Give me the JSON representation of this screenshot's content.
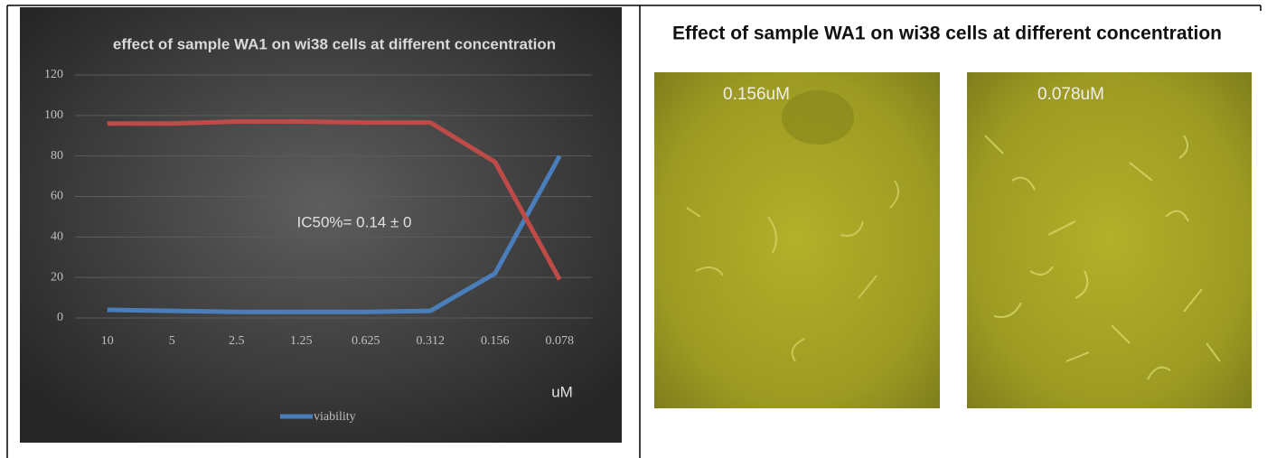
{
  "chart_data": {
    "type": "line",
    "title": "effect of sample WA1 on wi38 cells at different concentration",
    "categories": [
      "10",
      "5",
      "2.5",
      "1.25",
      "0.625",
      "0.312",
      "0.156",
      "0.078"
    ],
    "series": [
      {
        "name": "viability",
        "color": "#4a7ebb",
        "values": [
          4,
          3.5,
          3,
          3,
          3,
          3.5,
          22,
          80
        ]
      },
      {
        "color": "#be4b48",
        "values": [
          96,
          96,
          97,
          97,
          96.5,
          96.5,
          77,
          19
        ]
      }
    ],
    "ylim": [
      0,
      120
    ],
    "yticks": [
      0,
      20,
      40,
      60,
      80,
      100,
      120
    ],
    "grid": true,
    "annotation": "IC50%= 0.14 ± 0",
    "x_label": "uM",
    "legend": "bottom"
  },
  "images_panel": {
    "title": "Effect of sample WA1 on wi38 cells at different concentration",
    "images": [
      {
        "label": "0.156uM"
      },
      {
        "label": "0.078uM"
      }
    ]
  }
}
